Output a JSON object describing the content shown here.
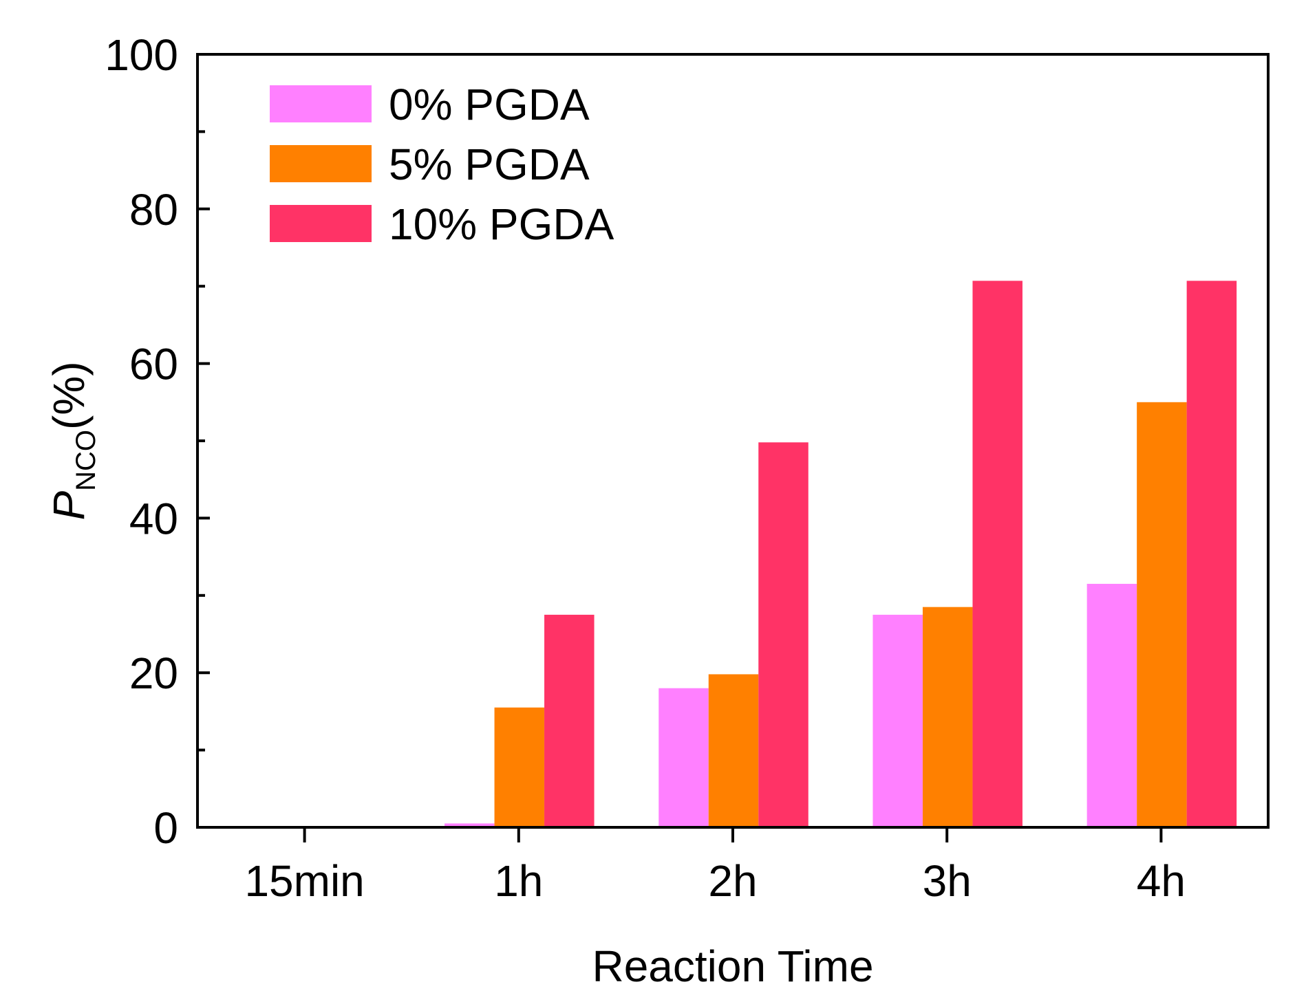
{
  "chart_data": {
    "type": "bar",
    "title": "",
    "xlabel": "Reaction Time",
    "ylabel": {
      "symbol": "P",
      "subscript": "NCO",
      "unit": "(%)"
    },
    "categories": [
      "15min",
      "1h",
      "2h",
      "3h",
      "4h"
    ],
    "series": [
      {
        "name": "0% PGDA",
        "color": "#ff80ff",
        "values": [
          0,
          0.5,
          18,
          27.5,
          31.5
        ]
      },
      {
        "name": "5% PGDA",
        "color": "#ff8000",
        "values": [
          0,
          15.5,
          19.8,
          28.5,
          55
        ]
      },
      {
        "name": "10% PGDA",
        "color": "#ff3366",
        "values": [
          0,
          27.5,
          49.8,
          70.7,
          70.7
        ]
      }
    ],
    "ylim": [
      0,
      100
    ],
    "yticks": [
      0,
      20,
      40,
      60,
      80,
      100
    ],
    "grid": false,
    "legend_position": "top-left"
  }
}
